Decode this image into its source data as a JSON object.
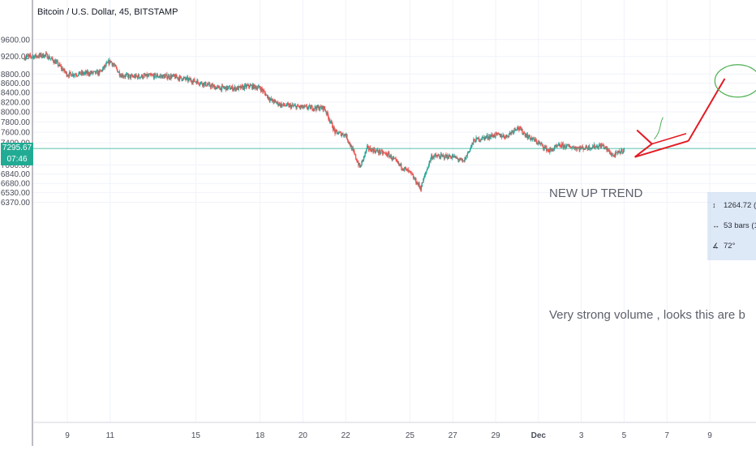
{
  "header": {
    "title": "Bitcoin / U.S. Dollar, 45, BITSTAMP"
  },
  "price_tag": {
    "price": "7295.67",
    "countdown": "07:46",
    "color": "#22ab94"
  },
  "measure": {
    "price_change": "1264.72 (",
    "bars": "53 bars (1",
    "angle": "72°"
  },
  "colors": {
    "up": "#26a69a",
    "down": "#ef5350",
    "drawing": "#e31b23",
    "circle": "#4caf50",
    "annotation": "#5d606b",
    "price_line": "#22ab94",
    "grid": "#f0f3fa"
  },
  "chart_data": {
    "type": "candlestick",
    "title": "Bitcoin / U.S. Dollar, 45, BITSTAMP",
    "ylim": [
      6280,
      9600
    ],
    "y_scale": "log",
    "grid": true,
    "y_ticks": [
      "9600.00",
      "9200.00",
      "8800.00",
      "8600.00",
      "8400.00",
      "8200.00",
      "8000.00",
      "7800.00",
      "7600.00",
      "7400.00",
      "7000.00",
      "6840.00",
      "6680.00",
      "6530.00",
      "6370.00"
    ],
    "x_ticks": [
      "9",
      "11",
      "15",
      "18",
      "20",
      "22",
      "25",
      "27",
      "29",
      "Dec",
      "3",
      "5",
      "7",
      "9"
    ],
    "path": [
      [
        "Nov 7",
        9180
      ],
      [
        "Nov 8",
        9230
      ],
      [
        "Nov 8",
        9050
      ],
      [
        "Nov 9",
        8790
      ],
      [
        "Nov 10",
        8820
      ],
      [
        "Nov 10",
        8830
      ],
      [
        "Nov 11",
        9100
      ],
      [
        "Nov 11",
        8780
      ],
      [
        "Nov 12",
        8740
      ],
      [
        "Nov 13",
        8760
      ],
      [
        "Nov 14",
        8740
      ],
      [
        "Nov 15",
        8640
      ],
      [
        "Nov 16",
        8500
      ],
      [
        "Nov 17",
        8490
      ],
      [
        "Nov 17",
        8540
      ],
      [
        "Nov 18",
        8500
      ],
      [
        "Nov 18",
        8240
      ],
      [
        "Nov 19",
        8140
      ],
      [
        "Nov 20",
        8090
      ],
      [
        "Nov 21",
        8080
      ],
      [
        "Nov 21",
        7600
      ],
      [
        "Nov 22",
        7550
      ],
      [
        "Nov 22",
        7250
      ],
      [
        "Nov 22",
        6950
      ],
      [
        "Nov 23",
        7300
      ],
      [
        "Nov 24",
        7180
      ],
      [
        "Nov 24",
        7000
      ],
      [
        "Nov 25",
        6860
      ],
      [
        "Nov 25",
        6600
      ],
      [
        "Nov 26",
        7150
      ],
      [
        "Nov 27",
        7150
      ],
      [
        "Nov 27",
        7050
      ],
      [
        "Nov 28",
        7450
      ],
      [
        "Nov 29",
        7550
      ],
      [
        "Nov 29",
        7520
      ],
      [
        "Nov 30",
        7700
      ],
      [
        "Nov 30",
        7520
      ],
      [
        "Dec 1",
        7400
      ],
      [
        "Dec 1",
        7250
      ],
      [
        "Dec 2",
        7350
      ],
      [
        "Dec 3",
        7300
      ],
      [
        "Dec 4",
        7350
      ],
      [
        "Dec 4",
        7160
      ],
      [
        "Dec 5",
        7280
      ]
    ]
  },
  "annotations": {
    "uptrend_text": "NEW UP TREND",
    "volume_text": "Very strong volume , looks  this are b"
  }
}
